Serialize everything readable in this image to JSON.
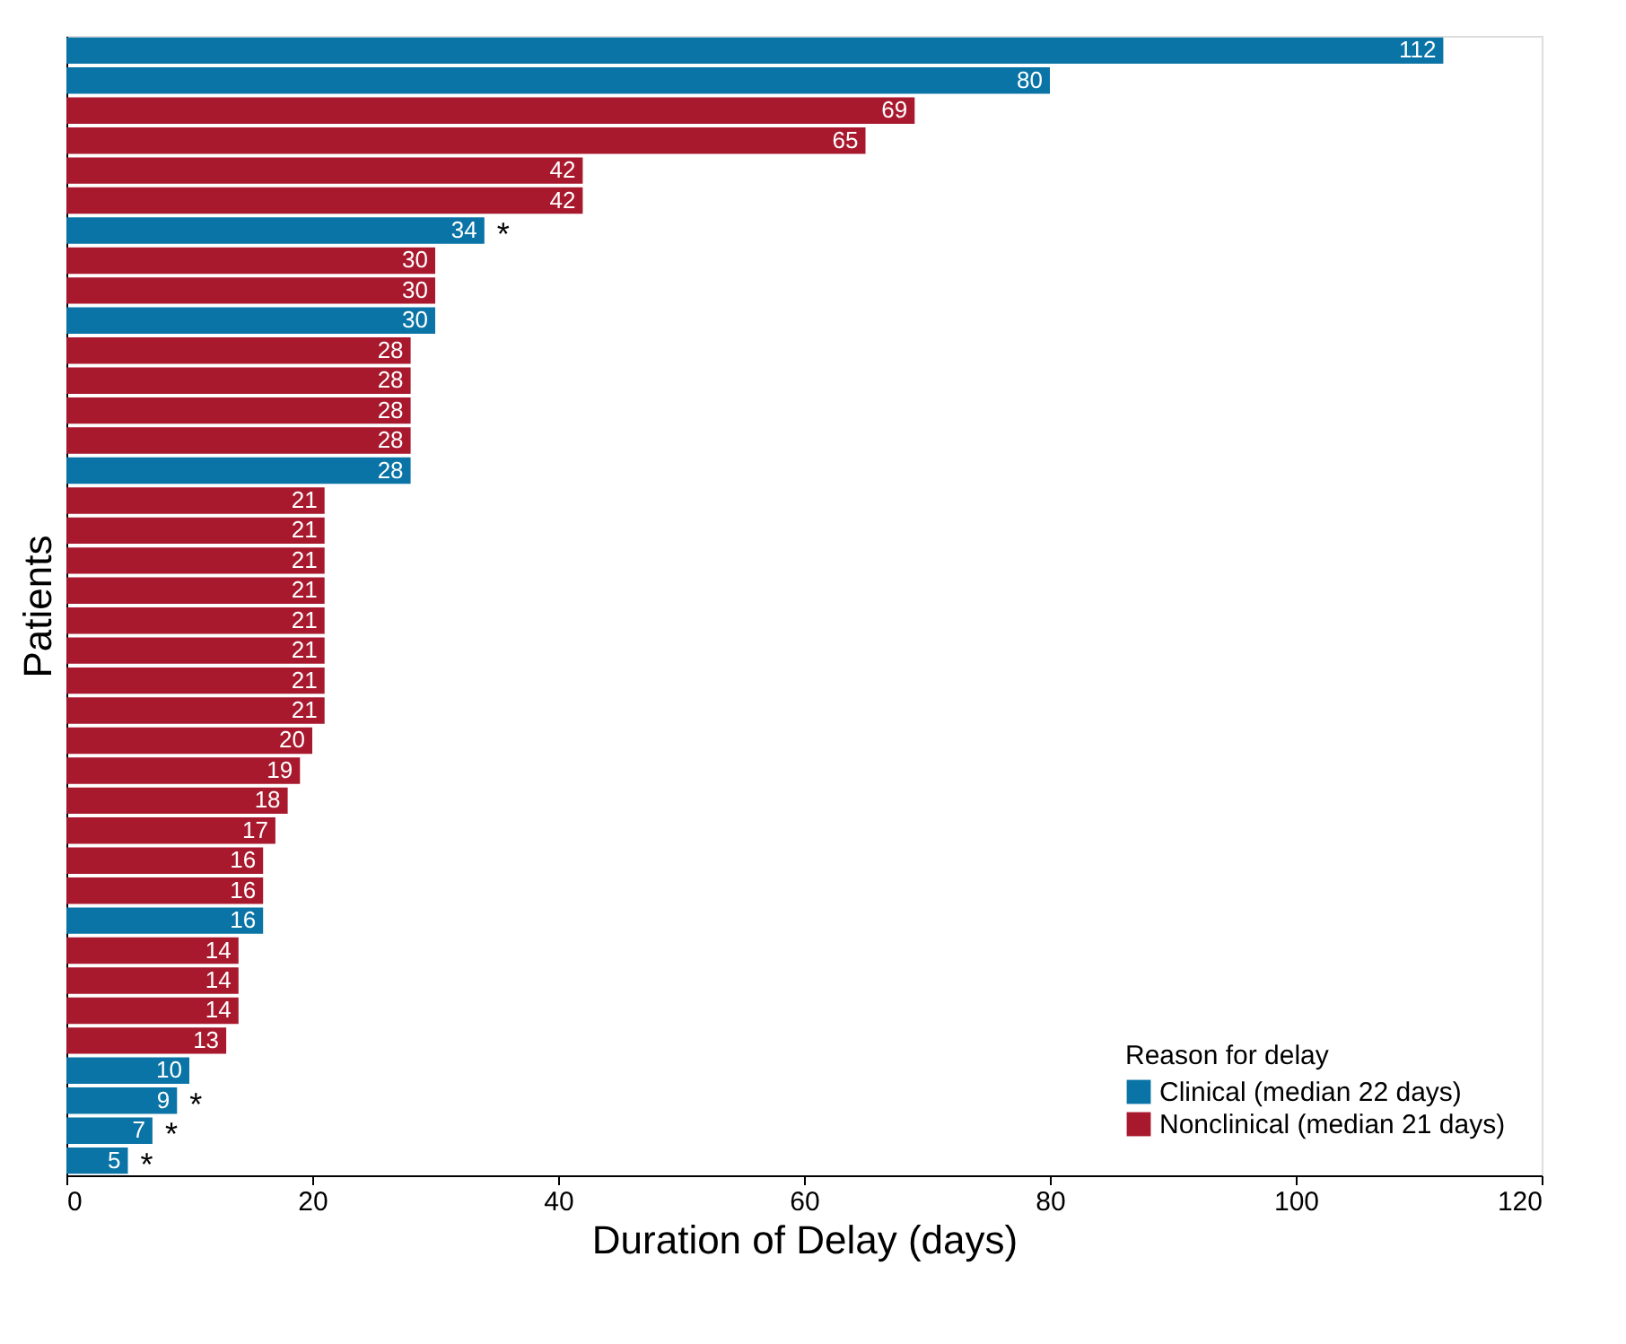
{
  "chart_data": {
    "type": "bar",
    "orientation": "horizontal",
    "xlabel": "Duration of Delay (days)",
    "ylabel": "Patients",
    "legend_title": "Reason for delay",
    "legend": "bottom right",
    "data_labels": true,
    "grid": false,
    "categories": [
      null,
      null,
      null,
      null,
      null,
      null,
      null,
      null,
      null,
      null,
      null,
      null,
      null,
      null,
      null,
      null,
      null,
      null,
      null,
      null,
      null,
      null,
      null,
      null,
      null,
      null,
      null,
      null,
      null,
      null,
      null,
      null,
      null,
      null,
      null,
      null,
      null,
      null
    ],
    "series": [
      {
        "name": "Clinical (median 22 days)",
        "color": "#0a74a6",
        "values": [
          112,
          80,
          null,
          null,
          null,
          null,
          34,
          null,
          null,
          30,
          null,
          null,
          null,
          null,
          28,
          null,
          null,
          null,
          null,
          null,
          null,
          null,
          null,
          null,
          null,
          null,
          null,
          null,
          null,
          16,
          null,
          null,
          null,
          null,
          10,
          9,
          7,
          5
        ]
      },
      {
        "name": "Nonclinical (median 21 days)",
        "color": "#a8192e",
        "values": [
          null,
          null,
          69,
          65,
          42,
          42,
          null,
          30,
          30,
          null,
          28,
          28,
          28,
          28,
          null,
          21,
          21,
          21,
          21,
          21,
          21,
          21,
          21,
          20,
          19,
          18,
          17,
          16,
          16,
          null,
          14,
          14,
          14,
          13,
          null,
          null,
          null,
          null
        ]
      }
    ],
    "annotations": [
      {
        "text": "*",
        "x": 34
      },
      {
        "text": "*",
        "x": 9
      },
      {
        "text": "*",
        "x": 7
      },
      {
        "text": "*",
        "x": 5
      }
    ],
    "xlim": [
      0,
      120
    ],
    "xticks": [
      0,
      20,
      40,
      60,
      80,
      100,
      120
    ]
  }
}
